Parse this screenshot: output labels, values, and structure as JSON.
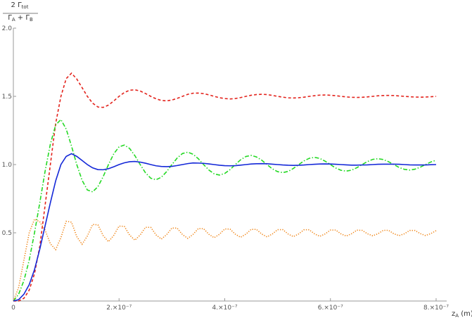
{
  "chart_data": {
    "type": "line",
    "y_label": {
      "numerator": [
        "2 Γ",
        "tot"
      ],
      "denominator": [
        "Γ",
        "A",
        " + Γ",
        "B"
      ]
    },
    "x_label": [
      "z",
      "A",
      " (m)"
    ],
    "x": [
      0,
      1e-08,
      2e-08,
      3e-08,
      4e-08,
      5e-08,
      6e-08,
      7e-08,
      8e-08,
      9e-08,
      1e-07,
      1.1e-07,
      1.2e-07,
      1.3e-07,
      1.4e-07,
      1.5e-07,
      1.6e-07,
      1.7e-07,
      1.8e-07,
      1.9e-07,
      2e-07,
      2.1e-07,
      2.2e-07,
      2.3e-07,
      2.4e-07,
      2.5e-07,
      2.6e-07,
      2.7e-07,
      2.8e-07,
      2.9e-07,
      3e-07,
      3.1e-07,
      3.2e-07,
      3.3e-07,
      3.4e-07,
      3.5e-07,
      3.6e-07,
      3.7e-07,
      3.8e-07,
      3.9e-07,
      4e-07,
      4.1e-07,
      4.2e-07,
      4.3e-07,
      4.4e-07,
      4.5e-07,
      4.6e-07,
      4.7e-07,
      4.8e-07,
      4.9e-07,
      5e-07,
      5.1e-07,
      5.2e-07,
      5.3e-07,
      5.4e-07,
      5.5e-07,
      5.6e-07,
      5.7e-07,
      5.8e-07,
      5.9e-07,
      6e-07,
      6.1e-07,
      6.2e-07,
      6.3e-07,
      6.4e-07,
      6.5e-07,
      6.6e-07,
      6.7e-07,
      6.8e-07,
      6.9e-07,
      7e-07,
      7.1e-07,
      7.2e-07,
      7.3e-07,
      7.4e-07,
      7.5e-07,
      7.6e-07,
      7.7e-07,
      7.8e-07,
      7.9e-07,
      8e-07
    ],
    "series": [
      {
        "color": "#e3231c",
        "dash": "dashed",
        "values": [
          0,
          0,
          0.02,
          0.08,
          0.2,
          0.4,
          0.7,
          1.0,
          1.3,
          1.5,
          1.63,
          1.67,
          1.627,
          1.564,
          1.5,
          1.45,
          1.422,
          1.419,
          1.436,
          1.466,
          1.5,
          1.528,
          1.545,
          1.548,
          1.539,
          1.521,
          1.5,
          1.482,
          1.47,
          1.467,
          1.473,
          1.485,
          1.5,
          1.515,
          1.523,
          1.524,
          1.52,
          1.511,
          1.5,
          1.49,
          1.484,
          1.481,
          1.484,
          1.491,
          1.5,
          1.508,
          1.513,
          1.515,
          1.513,
          1.507,
          1.5,
          1.494,
          1.489,
          1.488,
          1.49,
          1.494,
          1.5,
          1.505,
          1.509,
          1.51,
          1.508,
          1.505,
          1.5,
          1.496,
          1.493,
          1.492,
          1.493,
          1.496,
          1.5,
          1.504,
          1.506,
          1.507,
          1.506,
          1.503,
          1.5,
          1.497,
          1.495,
          1.494,
          1.495,
          1.497,
          1.5
        ]
      },
      {
        "color": "#24d924",
        "dash": "dashdot",
        "values": [
          0,
          0.05,
          0.15,
          0.3,
          0.5,
          0.72,
          0.95,
          1.15,
          1.29,
          1.33,
          1.26,
          1.136,
          1.0,
          0.885,
          0.814,
          0.8,
          0.838,
          0.912,
          1.0,
          1.079,
          1.13,
          1.143,
          1.118,
          1.065,
          1.0,
          0.94,
          0.9,
          0.889,
          0.907,
          0.948,
          1.0,
          1.048,
          1.081,
          1.091,
          1.076,
          1.043,
          1.0,
          0.96,
          0.932,
          0.923,
          0.935,
          0.963,
          1.0,
          1.035,
          1.059,
          1.067,
          1.056,
          1.032,
          1.0,
          0.969,
          0.948,
          0.941,
          0.95,
          0.972,
          1.0,
          1.027,
          1.046,
          1.053,
          1.045,
          1.025,
          1.0,
          0.975,
          0.958,
          0.952,
          0.959,
          0.977,
          1.0,
          1.022,
          1.038,
          1.043,
          1.037,
          1.021,
          1.0,
          0.979,
          0.965,
          0.96,
          0.966,
          0.981,
          1.0,
          1.019,
          1.032
        ]
      },
      {
        "color": "#f0891e",
        "dash": "dotted",
        "values": [
          0,
          0.1,
          0.3,
          0.5,
          0.6,
          0.58,
          0.52,
          0.42,
          0.376,
          0.465,
          0.584,
          0.578,
          0.472,
          0.416,
          0.476,
          0.561,
          0.558,
          0.479,
          0.435,
          0.481,
          0.549,
          0.547,
          0.483,
          0.446,
          0.484,
          0.54,
          0.54,
          0.485,
          0.454,
          0.486,
          0.535,
          0.534,
          0.487,
          0.459,
          0.488,
          0.531,
          0.53,
          0.489,
          0.464,
          0.489,
          0.528,
          0.527,
          0.49,
          0.467,
          0.49,
          0.525,
          0.525,
          0.491,
          0.47,
          0.491,
          0.523,
          0.523,
          0.491,
          0.472,
          0.492,
          0.522,
          0.522,
          0.492,
          0.474,
          0.492,
          0.52,
          0.52,
          0.492,
          0.476,
          0.493,
          0.519,
          0.518,
          0.493,
          0.478,
          0.493,
          0.518,
          0.518,
          0.493,
          0.479,
          0.493,
          0.517,
          0.517,
          0.494,
          0.48,
          0.494,
          0.516
        ]
      },
      {
        "color": "#1428d8",
        "dash": "solid",
        "values": [
          0,
          0.01,
          0.05,
          0.12,
          0.23,
          0.38,
          0.55,
          0.72,
          0.88,
          1.0,
          1.06,
          1.08,
          1.06,
          1.03,
          1.0,
          0.976,
          0.963,
          0.962,
          0.97,
          0.984,
          1.0,
          1.013,
          1.021,
          1.023,
          1.018,
          1.01,
          1.0,
          0.991,
          0.986,
          0.985,
          0.987,
          0.993,
          1.0,
          1.007,
          1.012,
          1.011,
          1.009,
          1.005,
          1.0,
          0.995,
          0.992,
          0.991,
          0.992,
          0.996,
          1.0,
          1.004,
          1.006,
          1.007,
          1.006,
          1.003,
          1.0,
          0.997,
          0.995,
          0.994,
          0.995,
          0.997,
          1.0,
          1.002,
          1.004,
          1.005,
          1.004,
          1.002,
          1.0,
          0.998,
          0.996,
          0.996,
          0.997,
          0.998,
          1.0,
          1.002,
          1.003,
          1.003,
          1.003,
          1.002,
          1.0,
          0.998,
          0.997,
          0.997,
          0.997,
          0.999,
          1.0
        ]
      }
    ],
    "xlim": [
      0,
      8.2e-07
    ],
    "ylim": [
      0,
      2.0
    ],
    "xticks": [
      0,
      {
        "value": 2e-07,
        "label": "2.×10⁻⁷"
      },
      {
        "value": 4e-07,
        "label": "4.×10⁻⁷"
      },
      {
        "value": 6e-07,
        "label": "6.×10⁻⁷"
      },
      {
        "value": 8e-07,
        "label": "8.×10⁻⁷"
      }
    ],
    "yticks": [
      0.5,
      {
        "value": 1,
        "label": "1.0"
      },
      1.5,
      {
        "value": 2,
        "label": "2.0"
      }
    ],
    "grid": false
  }
}
